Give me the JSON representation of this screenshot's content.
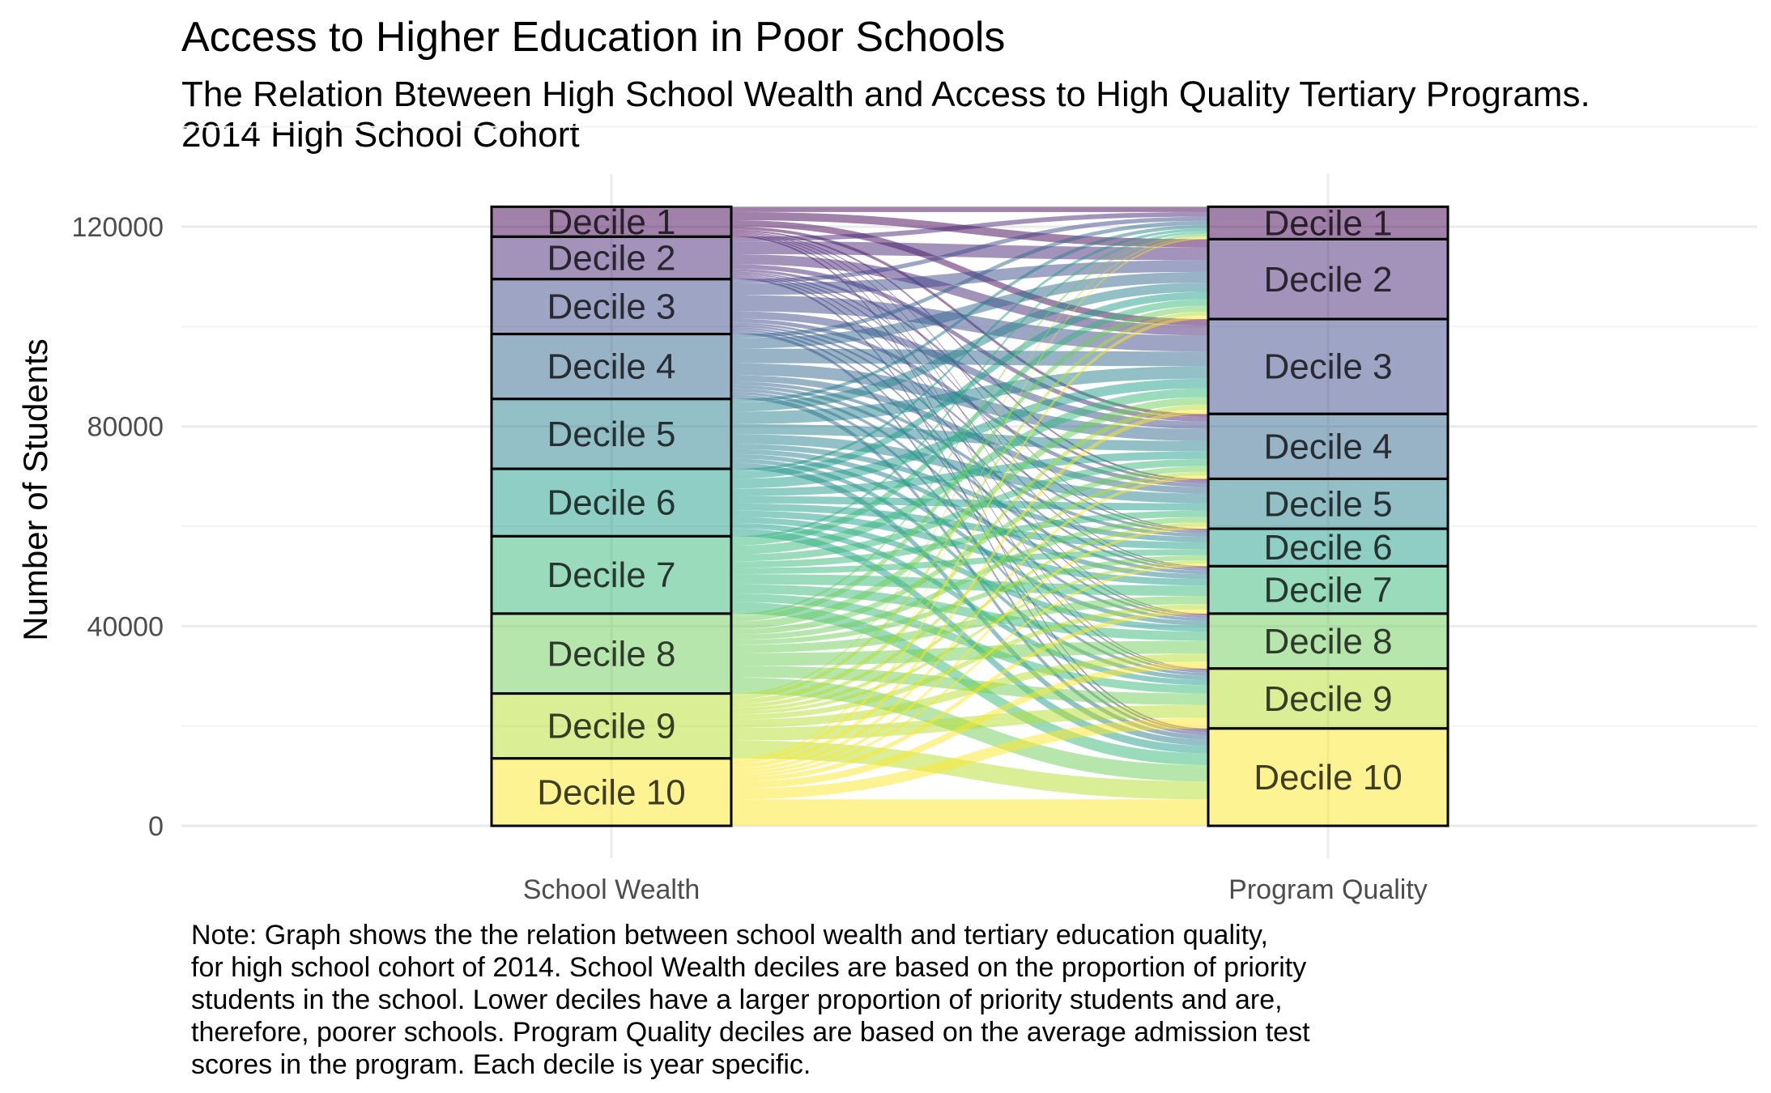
{
  "title": "Access to Higher Education in Poor Schools",
  "subtitle": "The Relation Bteween High School Wealth and Access to High Quality Tertiary Programs.\n 2014 High School Cohort",
  "note": "Note: Graph shows the the relation between school wealth and tertiary education quality,\nfor high school cohort of 2014. School Wealth deciles are based on the proportion of priority\nstudents in the school. Lower deciles have a larger proportion of priority students and are,\ntherefore, poorer schools. Program Quality deciles are based on the average admission test\nscores in the program. Each decile is year specific.",
  "chart_data": {
    "type": "alluvial",
    "ylabel": "Number of Students",
    "ylim": [
      0,
      130000
    ],
    "y_ticks": [
      0,
      40000,
      80000,
      120000
    ],
    "axes": [
      "School Wealth",
      "Program Quality"
    ],
    "grid": true,
    "palette": [
      "#440154",
      "#482878",
      "#3e4989",
      "#31688e",
      "#26828e",
      "#1f9e89",
      "#35b779",
      "#6ece58",
      "#b5de2b",
      "#fde725"
    ],
    "strata": {
      "School Wealth": [
        {
          "label": "Decile  1",
          "value": 6000
        },
        {
          "label": "Decile  2",
          "value": 8500
        },
        {
          "label": "Decile  3",
          "value": 11000
        },
        {
          "label": "Decile  4",
          "value": 13000
        },
        {
          "label": "Decile  5",
          "value": 14000
        },
        {
          "label": "Decile  6",
          "value": 13500
        },
        {
          "label": "Decile  7",
          "value": 15500
        },
        {
          "label": "Decile  8",
          "value": 16000
        },
        {
          "label": "Decile  9",
          "value": 13000
        },
        {
          "label": "Decile 10",
          "value": 13500
        }
      ],
      "Program Quality": [
        {
          "label": "Decile  1",
          "value": 6500
        },
        {
          "label": "Decile  2",
          "value": 16000
        },
        {
          "label": "Decile  3",
          "value": 19000
        },
        {
          "label": "Decile  4",
          "value": 13000
        },
        {
          "label": "Decile  5",
          "value": 10000
        },
        {
          "label": "Decile  6",
          "value": 7500
        },
        {
          "label": "Decile  7",
          "value": 9500
        },
        {
          "label": "Decile  8",
          "value": 11000
        },
        {
          "label": "Decile  9",
          "value": 12000
        },
        {
          "label": "Decile 10",
          "value": 19500
        }
      ]
    }
  }
}
